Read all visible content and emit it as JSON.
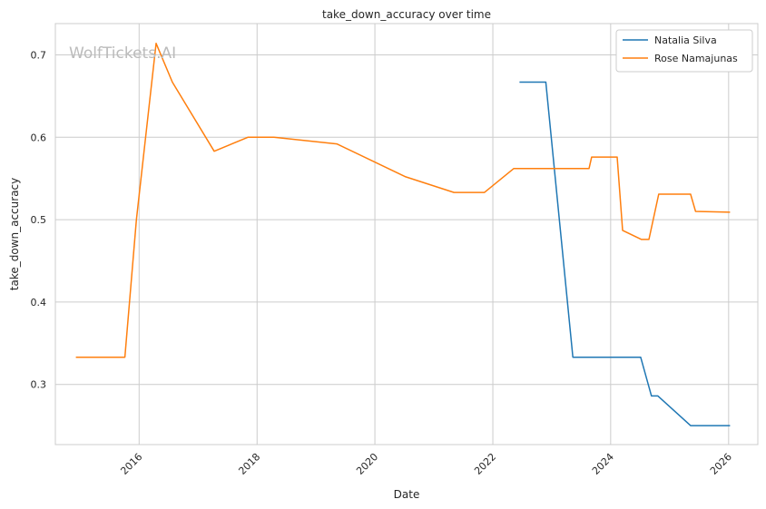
{
  "chart_data": {
    "type": "line",
    "title": "take_down_accuracy over time",
    "xlabel": "Date",
    "ylabel": "take_down_accuracy",
    "watermark": "WolfTickets.AI",
    "x_ticks": [
      "2016",
      "2018",
      "2020",
      "2022",
      "2024",
      "2026"
    ],
    "y_ticks": [
      "0.3",
      "0.4",
      "0.5",
      "0.6",
      "0.7"
    ],
    "xlim": [
      "2014-07-31",
      "2026-07-01"
    ],
    "ylim": [
      0.227,
      0.738
    ],
    "grid": true,
    "legend_position": "top-right",
    "series": [
      {
        "name": "Natalia Silva",
        "color": "#1f77b4",
        "points": [
          [
            "2022-06-15",
            0.667
          ],
          [
            "2022-11-25",
            0.667
          ],
          [
            "2023-05-12",
            0.333
          ],
          [
            "2024-07-05",
            0.333
          ],
          [
            "2024-09-10",
            0.286
          ],
          [
            "2024-10-20",
            0.286
          ],
          [
            "2025-05-10",
            0.25
          ],
          [
            "2026-01-10",
            0.25
          ]
        ]
      },
      {
        "name": "Rose Namajunas",
        "color": "#ff7f0e",
        "points": [
          [
            "2014-12-05",
            0.333
          ],
          [
            "2015-10-05",
            0.333
          ],
          [
            "2015-12-15",
            0.5
          ],
          [
            "2016-04-15",
            0.714
          ],
          [
            "2016-07-25",
            0.667
          ],
          [
            "2017-04-10",
            0.583
          ],
          [
            "2017-11-05",
            0.6
          ],
          [
            "2018-04-15",
            0.6
          ],
          [
            "2019-05-10",
            0.592
          ],
          [
            "2020-07-10",
            0.552
          ],
          [
            "2021-05-05",
            0.533
          ],
          [
            "2021-11-10",
            0.533
          ],
          [
            "2022-05-10",
            0.562
          ],
          [
            "2023-08-20",
            0.562
          ],
          [
            "2023-09-05",
            0.576
          ],
          [
            "2024-02-10",
            0.576
          ],
          [
            "2024-03-15",
            0.487
          ],
          [
            "2024-07-10",
            0.476
          ],
          [
            "2024-08-25",
            0.476
          ],
          [
            "2024-10-25",
            0.531
          ],
          [
            "2025-05-10",
            0.531
          ],
          [
            "2025-06-10",
            0.51
          ],
          [
            "2026-01-10",
            0.509
          ]
        ]
      }
    ]
  }
}
